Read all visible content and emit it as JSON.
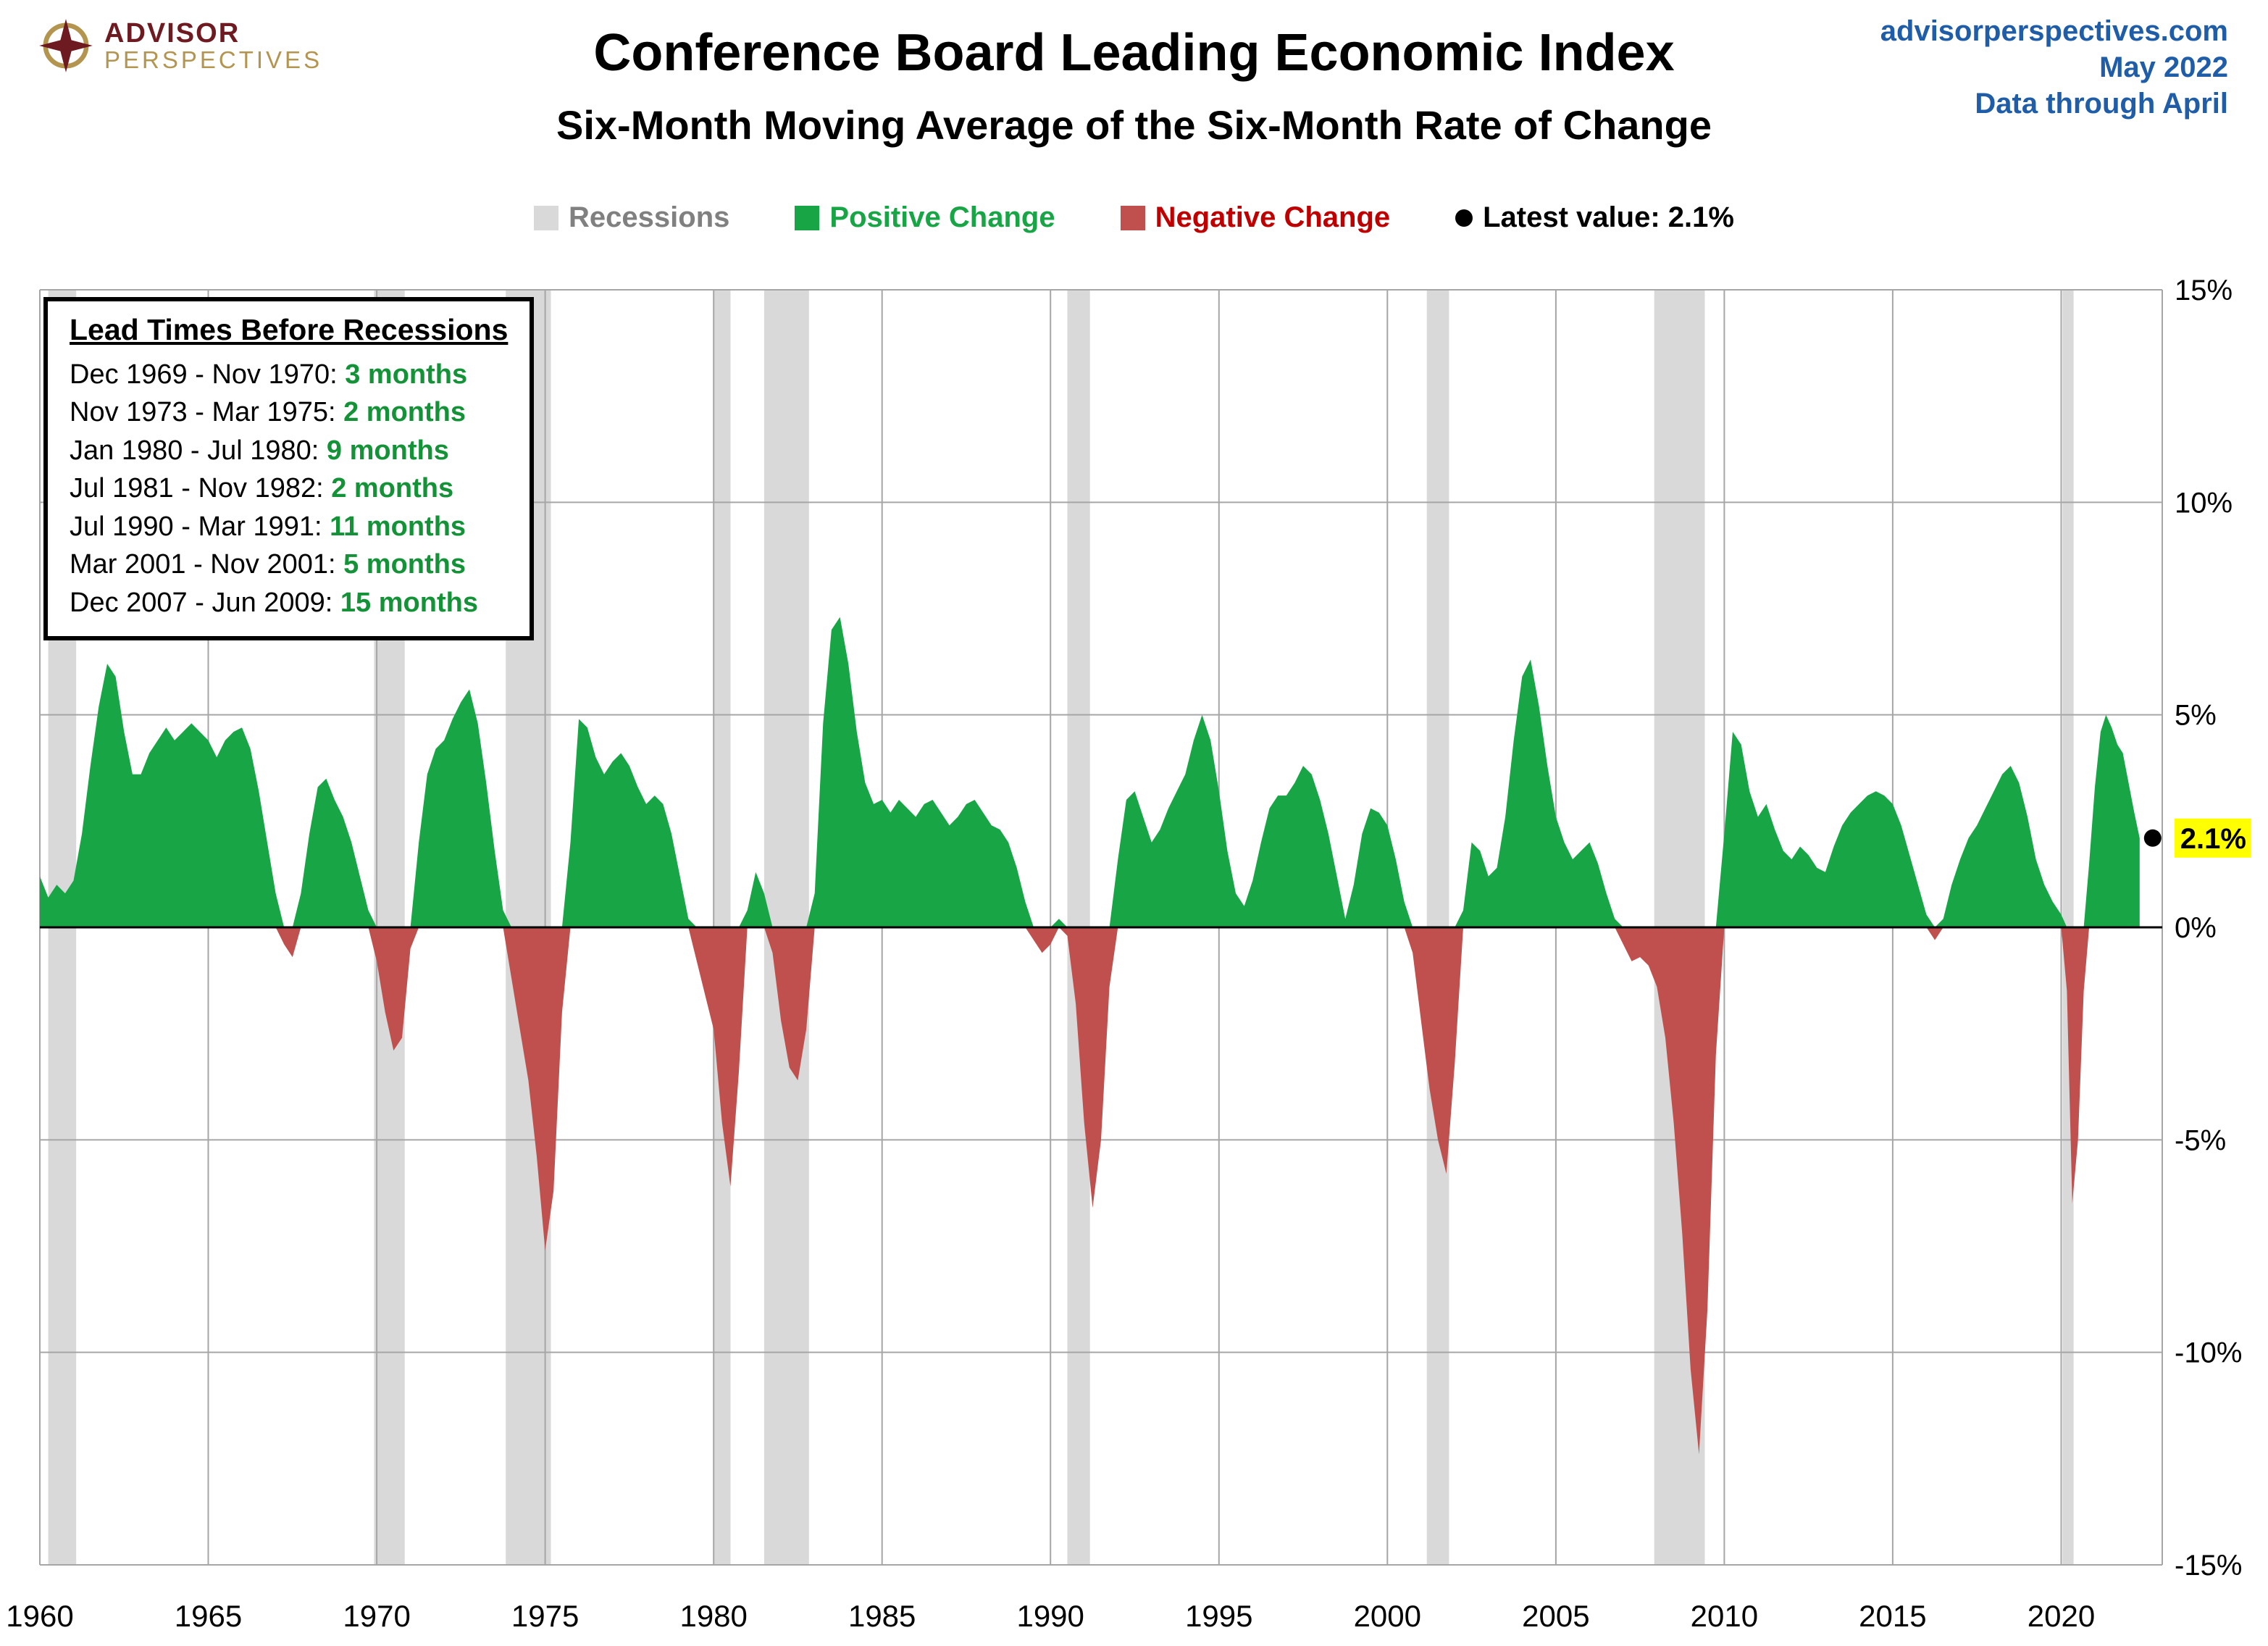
{
  "header": {
    "logo": {
      "line1": "ADVISOR",
      "line2": "PERSPECTIVES"
    },
    "title": "Conference Board Leading Economic Index",
    "subtitle": "Six-Month Moving Average of the Six-Month Rate of Change",
    "source": {
      "site": "advisorperspectives.com",
      "date": "May 2022",
      "note": "Data through April"
    }
  },
  "legend": [
    {
      "label": "Recessions",
      "color": "#d9d9d9",
      "text_color": "#808080",
      "shape": "square"
    },
    {
      "label": "Positive Change",
      "color": "#17a546",
      "text_color": "#17a546",
      "shape": "square"
    },
    {
      "label": "Negative Change",
      "color": "#c0504d",
      "text_color": "#c00000",
      "shape": "square"
    },
    {
      "label": "Latest value: 2.1%",
      "color": "#000000",
      "text_color": "#000000",
      "shape": "circle"
    }
  ],
  "annotation_box": {
    "title": "Lead Times Before Recessions",
    "rows": [
      {
        "range": "Dec 1969 - Nov 1970:",
        "months": "3 months"
      },
      {
        "range": "Nov 1973 - Mar 1975:",
        "months": "2 months"
      },
      {
        "range": "Jan 1980 - Jul 1980:",
        "months": "9 months"
      },
      {
        "range": "Jul 1981 - Nov 1982:",
        "months": "2 months"
      },
      {
        "range": "Jul 1990 - Mar 1991:",
        "months": "11 months"
      },
      {
        "range": "Mar 2001 - Nov 2001:",
        "months": "5 months"
      },
      {
        "range": "Dec 2007 - Jun 2009:",
        "months": "15 months"
      }
    ],
    "months_color": "#149238"
  },
  "latest": {
    "label": "2.1%",
    "highlight": "#ffff00"
  },
  "chart_data": {
    "type": "area",
    "title": "Conference Board Leading Economic Index",
    "subtitle": "Six-Month Moving Average of the Six-Month Rate of Change",
    "xlabel": "",
    "ylabel": "",
    "x_range": [
      1960,
      2023
    ],
    "ylim": [
      -15,
      15
    ],
    "y_ticks": [
      15,
      10,
      5,
      0,
      -5,
      -10,
      -15
    ],
    "x_ticks": [
      1960,
      1965,
      1970,
      1975,
      1980,
      1985,
      1990,
      1995,
      2000,
      2005,
      2010,
      2015,
      2020
    ],
    "grid": true,
    "legend_position": "top",
    "latest_value": 2.1,
    "colors": {
      "positive": "#17a546",
      "negative": "#c0504d",
      "recession": "#d9d9d9",
      "grid": "#a6a6a6",
      "zero_line": "#000000"
    },
    "recessions": [
      [
        1960.25,
        1961.08
      ],
      [
        1969.92,
        1970.83
      ],
      [
        1973.83,
        1975.17
      ],
      [
        1980.0,
        1980.5
      ],
      [
        1981.5,
        1982.83
      ],
      [
        1990.5,
        1991.17
      ],
      [
        2001.17,
        2001.83
      ],
      [
        2007.92,
        2009.42
      ],
      [
        2020.04,
        2020.37
      ]
    ],
    "points": [
      [
        1960.0,
        1.2
      ],
      [
        1960.25,
        0.7
      ],
      [
        1960.5,
        1.0
      ],
      [
        1960.75,
        0.8
      ],
      [
        1961.0,
        1.1
      ],
      [
        1961.25,
        2.2
      ],
      [
        1961.5,
        3.8
      ],
      [
        1961.75,
        5.2
      ],
      [
        1962.0,
        6.2
      ],
      [
        1962.25,
        5.9
      ],
      [
        1962.5,
        4.6
      ],
      [
        1962.75,
        3.6
      ],
      [
        1963.0,
        3.6
      ],
      [
        1963.25,
        4.1
      ],
      [
        1963.5,
        4.4
      ],
      [
        1963.75,
        4.7
      ],
      [
        1964.0,
        4.4
      ],
      [
        1964.25,
        4.6
      ],
      [
        1964.5,
        4.8
      ],
      [
        1964.75,
        4.6
      ],
      [
        1965.0,
        4.4
      ],
      [
        1965.25,
        4.0
      ],
      [
        1965.5,
        4.4
      ],
      [
        1965.75,
        4.6
      ],
      [
        1966.0,
        4.7
      ],
      [
        1966.25,
        4.2
      ],
      [
        1966.5,
        3.2
      ],
      [
        1966.75,
        2.0
      ],
      [
        1967.0,
        0.8
      ],
      [
        1967.25,
        -0.4
      ],
      [
        1967.5,
        -0.7
      ],
      [
        1967.75,
        0.8
      ],
      [
        1968.0,
        2.2
      ],
      [
        1968.25,
        3.3
      ],
      [
        1968.5,
        3.5
      ],
      [
        1968.75,
        3.0
      ],
      [
        1969.0,
        2.6
      ],
      [
        1969.25,
        2.0
      ],
      [
        1969.5,
        1.2
      ],
      [
        1969.75,
        0.4
      ],
      [
        1970.0,
        -0.8
      ],
      [
        1970.25,
        -2.0
      ],
      [
        1970.5,
        -2.9
      ],
      [
        1970.75,
        -2.6
      ],
      [
        1971.0,
        -0.5
      ],
      [
        1971.25,
        2.0
      ],
      [
        1971.5,
        3.6
      ],
      [
        1971.75,
        4.2
      ],
      [
        1972.0,
        4.4
      ],
      [
        1972.25,
        4.9
      ],
      [
        1972.5,
        5.3
      ],
      [
        1972.75,
        5.6
      ],
      [
        1973.0,
        4.8
      ],
      [
        1973.25,
        3.4
      ],
      [
        1973.5,
        1.8
      ],
      [
        1973.75,
        0.4
      ],
      [
        1974.0,
        -1.2
      ],
      [
        1974.25,
        -2.4
      ],
      [
        1974.5,
        -3.6
      ],
      [
        1974.75,
        -5.4
      ],
      [
        1975.0,
        -7.6
      ],
      [
        1975.25,
        -6.2
      ],
      [
        1975.5,
        -2.0
      ],
      [
        1975.75,
        2.0
      ],
      [
        1976.0,
        4.9
      ],
      [
        1976.25,
        4.7
      ],
      [
        1976.5,
        4.0
      ],
      [
        1976.75,
        3.6
      ],
      [
        1977.0,
        3.9
      ],
      [
        1977.25,
        4.1
      ],
      [
        1977.5,
        3.8
      ],
      [
        1977.75,
        3.3
      ],
      [
        1978.0,
        2.9
      ],
      [
        1978.25,
        3.1
      ],
      [
        1978.5,
        2.9
      ],
      [
        1978.75,
        2.2
      ],
      [
        1979.0,
        1.2
      ],
      [
        1979.25,
        0.2
      ],
      [
        1979.5,
        -0.8
      ],
      [
        1979.75,
        -1.6
      ],
      [
        1980.0,
        -2.4
      ],
      [
        1980.25,
        -4.6
      ],
      [
        1980.5,
        -6.1
      ],
      [
        1980.75,
        -3.4
      ],
      [
        1981.0,
        0.4
      ],
      [
        1981.25,
        1.3
      ],
      [
        1981.5,
        0.8
      ],
      [
        1981.75,
        -0.6
      ],
      [
        1982.0,
        -2.2
      ],
      [
        1982.25,
        -3.3
      ],
      [
        1982.5,
        -3.6
      ],
      [
        1982.75,
        -2.4
      ],
      [
        1983.0,
        0.8
      ],
      [
        1983.25,
        4.8
      ],
      [
        1983.5,
        7.0
      ],
      [
        1983.75,
        7.3
      ],
      [
        1984.0,
        6.2
      ],
      [
        1984.25,
        4.6
      ],
      [
        1984.5,
        3.4
      ],
      [
        1984.75,
        2.9
      ],
      [
        1985.0,
        3.0
      ],
      [
        1985.25,
        2.7
      ],
      [
        1985.5,
        3.0
      ],
      [
        1985.75,
        2.8
      ],
      [
        1986.0,
        2.6
      ],
      [
        1986.25,
        2.9
      ],
      [
        1986.5,
        3.0
      ],
      [
        1986.75,
        2.7
      ],
      [
        1987.0,
        2.4
      ],
      [
        1987.25,
        2.6
      ],
      [
        1987.5,
        2.9
      ],
      [
        1987.75,
        3.0
      ],
      [
        1988.0,
        2.7
      ],
      [
        1988.25,
        2.4
      ],
      [
        1988.5,
        2.3
      ],
      [
        1988.75,
        2.0
      ],
      [
        1989.0,
        1.4
      ],
      [
        1989.25,
        0.6
      ],
      [
        1989.5,
        -0.3
      ],
      [
        1989.75,
        -0.6
      ],
      [
        1990.0,
        -0.4
      ],
      [
        1990.25,
        0.2
      ],
      [
        1990.5,
        -0.2
      ],
      [
        1990.75,
        -1.8
      ],
      [
        1991.0,
        -4.6
      ],
      [
        1991.25,
        -6.6
      ],
      [
        1991.5,
        -5.0
      ],
      [
        1991.75,
        -1.4
      ],
      [
        1992.0,
        1.6
      ],
      [
        1992.25,
        3.0
      ],
      [
        1992.5,
        3.2
      ],
      [
        1992.75,
        2.6
      ],
      [
        1993.0,
        2.0
      ],
      [
        1993.25,
        2.3
      ],
      [
        1993.5,
        2.8
      ],
      [
        1993.75,
        3.2
      ],
      [
        1994.0,
        3.6
      ],
      [
        1994.25,
        4.4
      ],
      [
        1994.5,
        5.0
      ],
      [
        1994.75,
        4.4
      ],
      [
        1995.0,
        3.2
      ],
      [
        1995.25,
        1.8
      ],
      [
        1995.5,
        0.8
      ],
      [
        1995.75,
        0.5
      ],
      [
        1996.0,
        1.1
      ],
      [
        1996.25,
        2.0
      ],
      [
        1996.5,
        2.8
      ],
      [
        1996.75,
        3.1
      ],
      [
        1997.0,
        3.1
      ],
      [
        1997.25,
        3.4
      ],
      [
        1997.5,
        3.8
      ],
      [
        1997.75,
        3.6
      ],
      [
        1998.0,
        3.0
      ],
      [
        1998.25,
        2.2
      ],
      [
        1998.5,
        1.2
      ],
      [
        1998.75,
        0.2
      ],
      [
        1999.0,
        1.0
      ],
      [
        1999.25,
        2.2
      ],
      [
        1999.5,
        2.8
      ],
      [
        1999.75,
        2.7
      ],
      [
        2000.0,
        2.4
      ],
      [
        2000.25,
        1.6
      ],
      [
        2000.5,
        0.6
      ],
      [
        2000.75,
        -0.6
      ],
      [
        2001.0,
        -2.2
      ],
      [
        2001.25,
        -3.8
      ],
      [
        2001.5,
        -5.0
      ],
      [
        2001.75,
        -5.8
      ],
      [
        2002.0,
        -3.2
      ],
      [
        2002.25,
        0.4
      ],
      [
        2002.5,
        2.0
      ],
      [
        2002.75,
        1.8
      ],
      [
        2003.0,
        1.2
      ],
      [
        2003.25,
        1.4
      ],
      [
        2003.5,
        2.6
      ],
      [
        2003.75,
        4.4
      ],
      [
        2004.0,
        5.9
      ],
      [
        2004.25,
        6.3
      ],
      [
        2004.5,
        5.2
      ],
      [
        2004.75,
        3.8
      ],
      [
        2005.0,
        2.6
      ],
      [
        2005.25,
        2.0
      ],
      [
        2005.5,
        1.6
      ],
      [
        2005.75,
        1.8
      ],
      [
        2006.0,
        2.0
      ],
      [
        2006.25,
        1.5
      ],
      [
        2006.5,
        0.8
      ],
      [
        2006.75,
        0.2
      ],
      [
        2007.0,
        -0.4
      ],
      [
        2007.25,
        -0.8
      ],
      [
        2007.5,
        -0.7
      ],
      [
        2007.75,
        -0.9
      ],
      [
        2008.0,
        -1.4
      ],
      [
        2008.25,
        -2.6
      ],
      [
        2008.5,
        -4.6
      ],
      [
        2008.75,
        -7.2
      ],
      [
        2009.0,
        -10.4
      ],
      [
        2009.25,
        -12.4
      ],
      [
        2009.5,
        -9.0
      ],
      [
        2009.75,
        -3.0
      ],
      [
        2010.0,
        2.2
      ],
      [
        2010.25,
        4.6
      ],
      [
        2010.5,
        4.3
      ],
      [
        2010.75,
        3.2
      ],
      [
        2011.0,
        2.6
      ],
      [
        2011.25,
        2.9
      ],
      [
        2011.5,
        2.3
      ],
      [
        2011.75,
        1.8
      ],
      [
        2012.0,
        1.6
      ],
      [
        2012.25,
        1.9
      ],
      [
        2012.5,
        1.7
      ],
      [
        2012.75,
        1.4
      ],
      [
        2013.0,
        1.3
      ],
      [
        2013.25,
        1.9
      ],
      [
        2013.5,
        2.4
      ],
      [
        2013.75,
        2.7
      ],
      [
        2014.0,
        2.9
      ],
      [
        2014.25,
        3.1
      ],
      [
        2014.5,
        3.2
      ],
      [
        2014.75,
        3.1
      ],
      [
        2015.0,
        2.9
      ],
      [
        2015.25,
        2.4
      ],
      [
        2015.5,
        1.7
      ],
      [
        2015.75,
        1.0
      ],
      [
        2016.0,
        0.3
      ],
      [
        2016.25,
        -0.3
      ],
      [
        2016.5,
        0.2
      ],
      [
        2016.75,
        1.0
      ],
      [
        2017.0,
        1.6
      ],
      [
        2017.25,
        2.1
      ],
      [
        2017.5,
        2.4
      ],
      [
        2017.75,
        2.8
      ],
      [
        2018.0,
        3.2
      ],
      [
        2018.25,
        3.6
      ],
      [
        2018.5,
        3.8
      ],
      [
        2018.75,
        3.4
      ],
      [
        2019.0,
        2.6
      ],
      [
        2019.25,
        1.6
      ],
      [
        2019.5,
        1.0
      ],
      [
        2019.75,
        0.6
      ],
      [
        2020.0,
        0.3
      ],
      [
        2020.17,
        -1.5
      ],
      [
        2020.33,
        -6.5
      ],
      [
        2020.5,
        -5.0
      ],
      [
        2020.67,
        -1.5
      ],
      [
        2020.83,
        1.5
      ],
      [
        2021.0,
        3.3
      ],
      [
        2021.17,
        4.6
      ],
      [
        2021.33,
        5.0
      ],
      [
        2021.5,
        4.7
      ],
      [
        2021.67,
        4.3
      ],
      [
        2021.83,
        4.1
      ],
      [
        2022.0,
        3.4
      ],
      [
        2022.17,
        2.7
      ],
      [
        2022.33,
        2.1
      ]
    ]
  }
}
